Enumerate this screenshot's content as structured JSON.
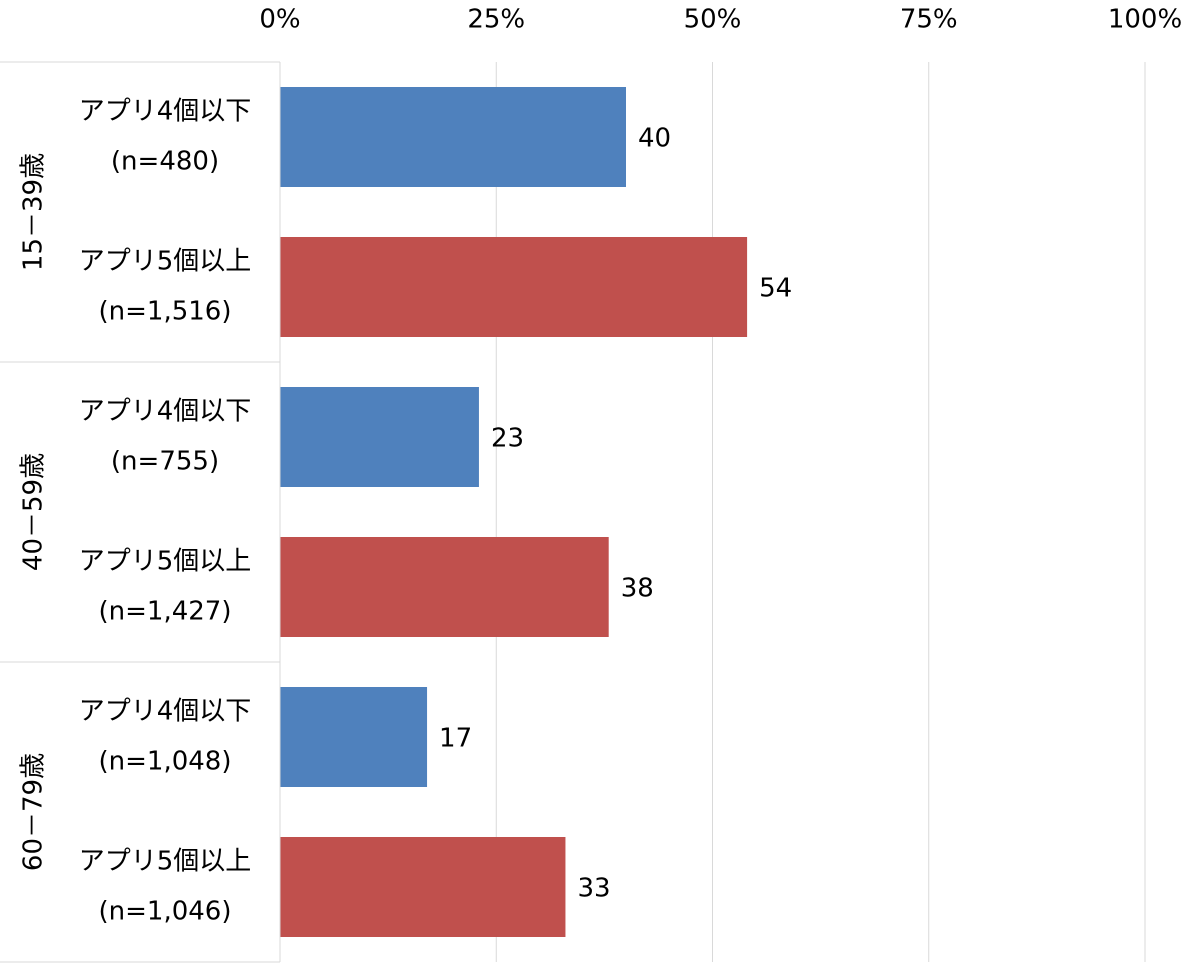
{
  "chart_data": {
    "type": "bar",
    "orientation": "horizontal",
    "xlim": [
      0,
      100
    ],
    "xticks": [
      {
        "value": 0,
        "label": "0%"
      },
      {
        "value": 25,
        "label": "25%"
      },
      {
        "value": 50,
        "label": "50%"
      },
      {
        "value": 75,
        "label": "75%"
      },
      {
        "value": 100,
        "label": "100%"
      }
    ],
    "grid": true,
    "groups": [
      {
        "name": "15－39歳",
        "bars": [
          {
            "label": [
              "アプリ4個以下",
              "(n=480)"
            ],
            "value": 40,
            "color": "#4f81bd"
          },
          {
            "label": [
              "アプリ5個以上",
              "(n=1,516)"
            ],
            "value": 54,
            "color": "#c0504d"
          }
        ]
      },
      {
        "name": "40－59歳",
        "bars": [
          {
            "label": [
              "アプリ4個以下",
              "(n=755)"
            ],
            "value": 23,
            "color": "#4f81bd"
          },
          {
            "label": [
              "アプリ5個以上",
              "(n=1,427)"
            ],
            "value": 38,
            "color": "#c0504d"
          }
        ]
      },
      {
        "name": "60－79歳",
        "bars": [
          {
            "label": [
              "アプリ4個以下",
              "(n=1,048)"
            ],
            "value": 17,
            "color": "#4f81bd"
          },
          {
            "label": [
              "アプリ5個以上",
              "(n=1,046)"
            ],
            "value": 33,
            "color": "#c0504d"
          }
        ]
      }
    ]
  }
}
